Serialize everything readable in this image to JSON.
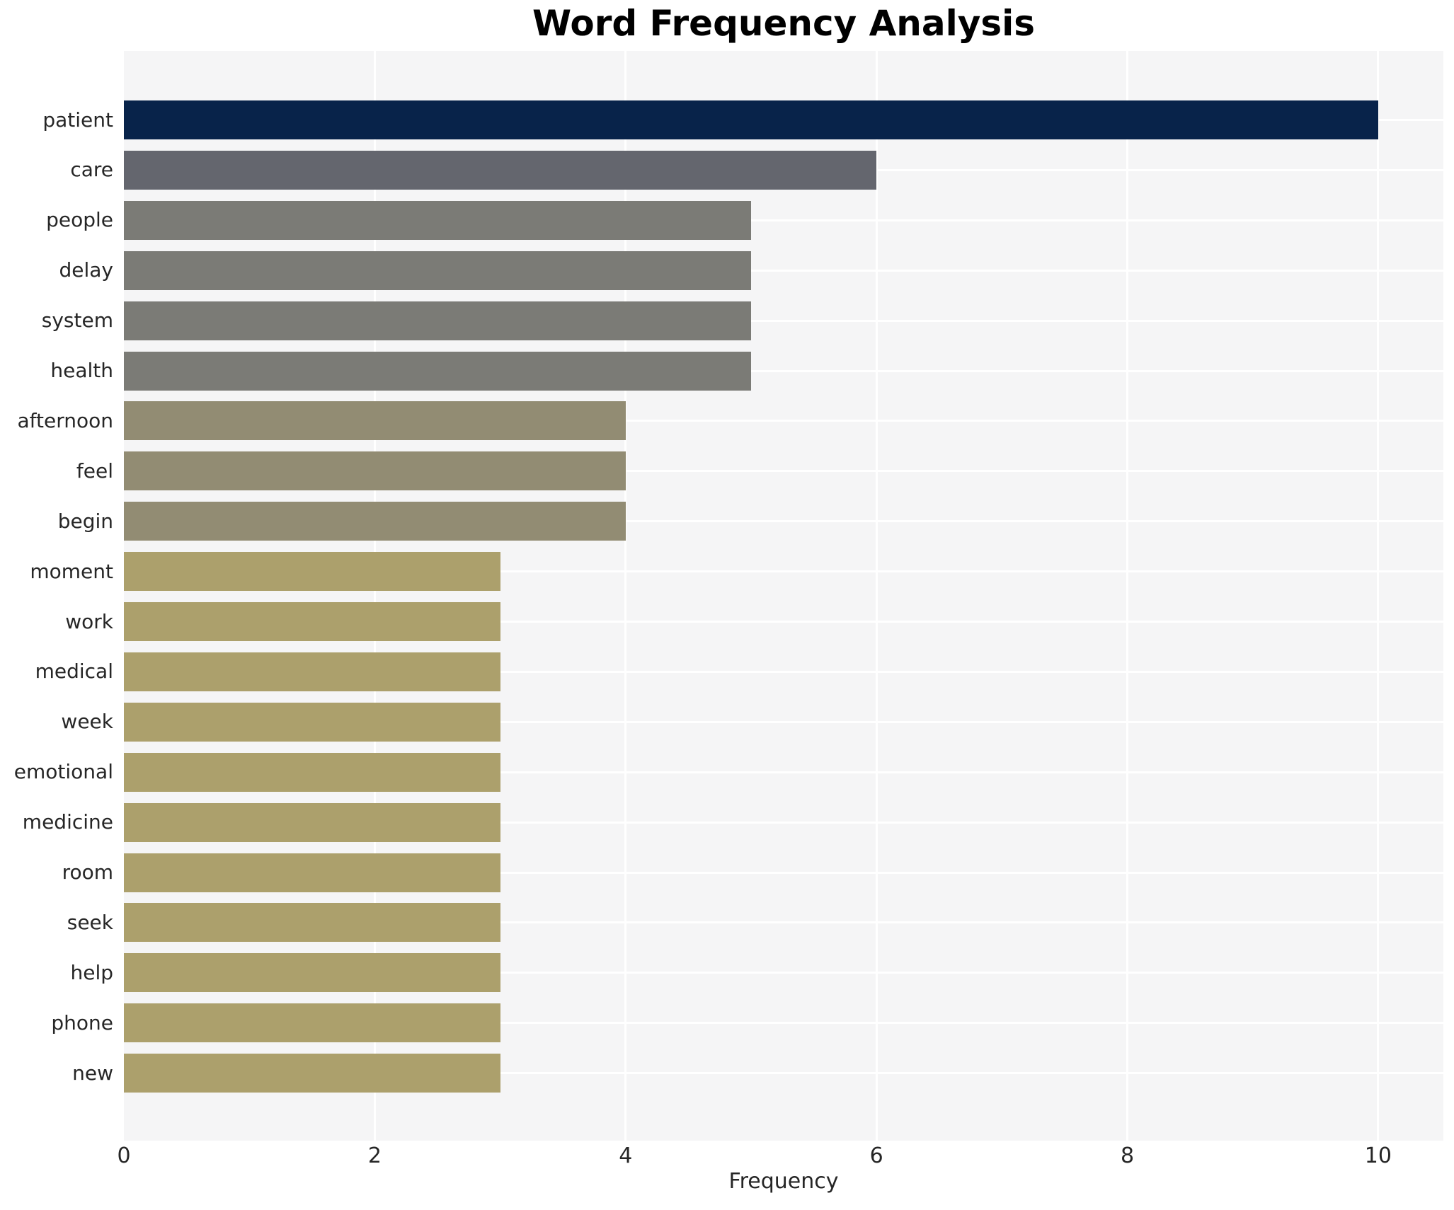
{
  "chart_data": {
    "type": "bar",
    "orientation": "horizontal",
    "title": "Word Frequency Analysis",
    "xlabel": "Frequency",
    "ylabel": "",
    "categories": [
      "patient",
      "care",
      "people",
      "delay",
      "system",
      "health",
      "afternoon",
      "feel",
      "begin",
      "moment",
      "work",
      "medical",
      "week",
      "emotional",
      "medicine",
      "room",
      "seek",
      "help",
      "phone",
      "new"
    ],
    "values": [
      10,
      6,
      5,
      5,
      5,
      5,
      4,
      4,
      4,
      3,
      3,
      3,
      3,
      3,
      3,
      3,
      3,
      3,
      3,
      3
    ],
    "bar_colors": [
      "#08234a",
      "#64666e",
      "#7b7b76",
      "#7b7b76",
      "#7b7b76",
      "#7b7b76",
      "#928c73",
      "#928c73",
      "#928c73",
      "#aca06c",
      "#aca06c",
      "#aca06c",
      "#aca06c",
      "#aca06c",
      "#aca06c",
      "#aca06c",
      "#aca06c",
      "#aca06c",
      "#aca06c",
      "#aca06c"
    ],
    "xticks": [
      0,
      2,
      4,
      6,
      8,
      10
    ],
    "xlim": [
      0,
      10.52
    ],
    "grid": {
      "visible": true,
      "grid_color": "#ffffff",
      "panel_background": "#f5f5f6",
      "horizontal": true,
      "vertical": true
    },
    "legend": "none",
    "title_color": "#000000",
    "tick_label_color": "#262626"
  }
}
